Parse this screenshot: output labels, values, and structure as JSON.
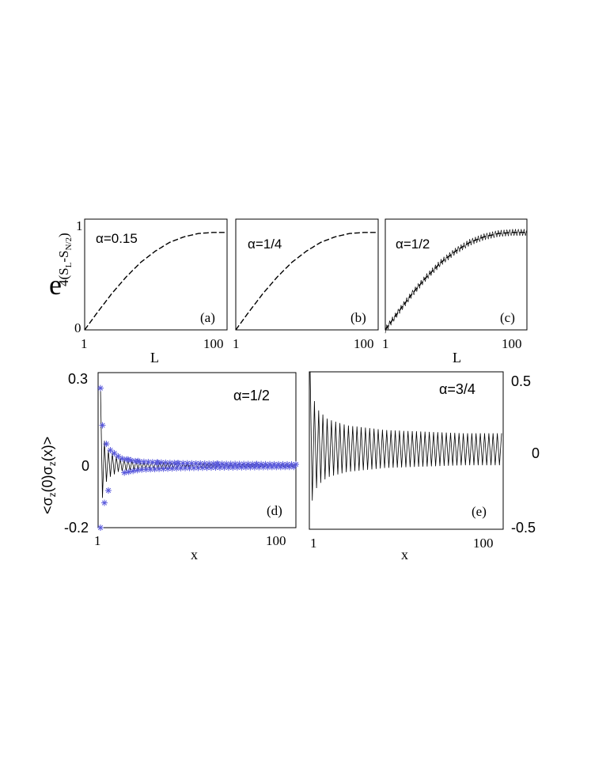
{
  "chart_data": [
    {
      "panel": "(a)",
      "type": "line",
      "annotation": "α=0.15",
      "xlabel": "L",
      "ylabel": "e^{4(S_L - S_{N/2})}",
      "x_ticks": [
        "1",
        "100"
      ],
      "y_ticks": [
        "0",
        "1"
      ],
      "xlim": [
        1,
        100
      ],
      "ylim": [
        0,
        1
      ],
      "series": [
        {
          "style": "dashed",
          "x": [
            1,
            10,
            20,
            30,
            40,
            50,
            60,
            70,
            80,
            90,
            100
          ],
          "y": [
            0.0,
            0.16,
            0.33,
            0.48,
            0.61,
            0.71,
            0.79,
            0.84,
            0.87,
            0.88,
            0.88
          ]
        }
      ]
    },
    {
      "panel": "(b)",
      "type": "line",
      "annotation": "α=1/4",
      "xlabel": "",
      "x_ticks": [
        "1",
        "100"
      ],
      "xlim": [
        1,
        100
      ],
      "ylim": [
        0,
        1
      ],
      "series": [
        {
          "style": "dashed",
          "x": [
            1,
            10,
            20,
            30,
            40,
            50,
            60,
            70,
            80,
            90,
            100
          ],
          "y": [
            0.0,
            0.16,
            0.33,
            0.48,
            0.61,
            0.71,
            0.79,
            0.84,
            0.87,
            0.88,
            0.88
          ]
        }
      ]
    },
    {
      "panel": "(c)",
      "type": "line",
      "annotation": "α=1/2",
      "xlabel": "L",
      "x_ticks": [
        "1",
        "100"
      ],
      "xlim": [
        1,
        100
      ],
      "ylim": [
        0,
        1
      ],
      "series": [
        {
          "style": "dashed",
          "x": [
            1,
            10,
            20,
            30,
            40,
            50,
            60,
            70,
            80,
            90,
            100
          ],
          "y": [
            0.0,
            0.16,
            0.33,
            0.48,
            0.61,
            0.71,
            0.79,
            0.84,
            0.87,
            0.88,
            0.88
          ]
        },
        {
          "style": "solid-oscillating",
          "amplitude": 0.03
        }
      ]
    },
    {
      "panel": "(d)",
      "type": "line",
      "annotation": "α=1/2",
      "xlabel": "x",
      "ylabel": "<σz(0)σz(x)>",
      "x_ticks": [
        "1",
        "100"
      ],
      "y_ticks": [
        "-0.2",
        "0",
        "0.3"
      ],
      "xlim": [
        1,
        100
      ],
      "ylim": [
        -0.2,
        0.3
      ],
      "series": [
        {
          "style": "solid-oscillating",
          "envelope_x": [
            1,
            2,
            3,
            5,
            10,
            20,
            40,
            60,
            80,
            100
          ],
          "envelope_y": [
            0.25,
            0.13,
            0.08,
            0.05,
            0.025,
            0.013,
            0.008,
            0.006,
            0.005,
            0.004
          ]
        },
        {
          "style": "star-markers",
          "color": "#5a5adc",
          "x": [
            1,
            1,
            2,
            3,
            4,
            5,
            6,
            8,
            10,
            15,
            20,
            30,
            40,
            60,
            80,
            100
          ],
          "y": [
            0.25,
            -0.2,
            0.13,
            -0.12,
            0.07,
            -0.08,
            0.05,
            0.04,
            0.03,
            0.02,
            0.015,
            0.01,
            0.008,
            0.006,
            0.005,
            0.004
          ]
        }
      ]
    },
    {
      "panel": "(e)",
      "type": "line",
      "annotation": "α=3/4",
      "xlabel": "x",
      "x_ticks": [
        "1",
        "100"
      ],
      "y_ticks": [
        "-0.5",
        "0",
        "0.5"
      ],
      "y_axis_side": "right",
      "xlim": [
        1,
        100
      ],
      "ylim": [
        -0.5,
        0.5
      ],
      "series": [
        {
          "style": "solid-oscillating",
          "envelope_x": [
            1,
            2,
            3,
            5,
            10,
            20,
            40,
            60,
            80,
            100
          ],
          "envelope_y": [
            0.5,
            0.38,
            0.32,
            0.26,
            0.2,
            0.16,
            0.13,
            0.12,
            0.11,
            0.11
          ]
        }
      ]
    }
  ],
  "labels": {
    "panel_a": "(a)",
    "panel_b": "(b)",
    "panel_c": "(c)",
    "panel_d": "(d)",
    "panel_e": "(e)",
    "alpha_a": "α=0.15",
    "alpha_b": "α=1/4",
    "alpha_c": "α=1/2",
    "alpha_d": "α=1/2",
    "alpha_e": "α=3/4",
    "L": "L",
    "x": "x",
    "one": "1",
    "hundred": "100",
    "zero": "0",
    "top_one": "1",
    "d_top": "0.3",
    "d_zero": "0",
    "d_bottom": "-0.2",
    "e_top": "0.5",
    "e_zero": "0",
    "e_bottom": "-0.5"
  },
  "colors": {
    "line": "#000000",
    "markers": "#5a5adc"
  }
}
